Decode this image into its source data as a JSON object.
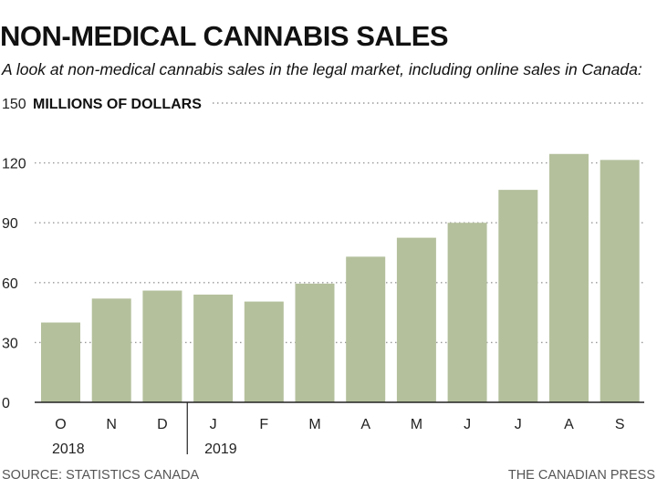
{
  "title": "NON-MEDICAL CANNABIS SALES",
  "subtitle": "A look at non-medical cannabis sales in the legal market, including online sales in Canada:",
  "source": "SOURCE: STATISTICS CANADA",
  "credit": "THE CANADIAN PRESS",
  "colors": {
    "bar": "#b4c09c",
    "gridline": "#999999",
    "axis": "#222222"
  },
  "chart_data": {
    "type": "bar",
    "title": "NON-MEDICAL CANNABIS SALES",
    "ylabel": "MILLIONS OF DOLLARS",
    "xlabel": "",
    "categories": [
      "O",
      "N",
      "D",
      "J",
      "F",
      "M",
      "A",
      "M",
      "J",
      "J",
      "A",
      "S"
    ],
    "year_labels": [
      {
        "label": "2018",
        "first_index": 0
      },
      {
        "label": "2019",
        "first_index": 3
      }
    ],
    "values": [
      40,
      52,
      56,
      54,
      50.5,
      59.5,
      73,
      82.5,
      90,
      106.5,
      124.5,
      121.5
    ],
    "ylim": [
      0,
      150
    ],
    "yticks": [
      0,
      30,
      60,
      90,
      120,
      150
    ],
    "grid": true,
    "legend": "none"
  }
}
